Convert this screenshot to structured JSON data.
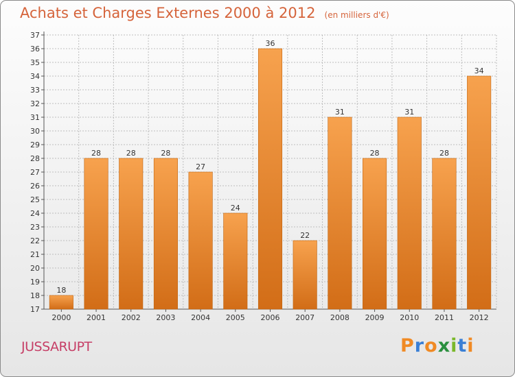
{
  "page": {
    "title": "Achats et Charges Externes 2000 à 2012",
    "subtitle": "(en milliers d'€)",
    "commune": "JUSSARUPT",
    "logo": {
      "text": "Proxiti",
      "letter_colors": [
        "#f08a24",
        "#3a7fd5",
        "#f08a24",
        "#2a8f3e",
        "#7ab82a",
        "#3a7fd5",
        "#f08a24"
      ]
    }
  },
  "chart_data": {
    "type": "bar",
    "title": "Achats et Charges Externes 2000 à 2012",
    "subtitle": "(en milliers d'€)",
    "categories": [
      "2000",
      "2001",
      "2002",
      "2003",
      "2004",
      "2005",
      "2006",
      "2007",
      "2008",
      "2009",
      "2010",
      "2011",
      "2012"
    ],
    "values": [
      18,
      28,
      28,
      28,
      27,
      24,
      36,
      22,
      31,
      28,
      31,
      28,
      34
    ],
    "ylim": [
      17,
      37
    ],
    "yticks": [
      17,
      18,
      19,
      20,
      21,
      22,
      23,
      24,
      25,
      26,
      27,
      28,
      29,
      30,
      31,
      32,
      33,
      34,
      35,
      36,
      37
    ],
    "grid": true,
    "legend": "none",
    "colors": {
      "bar_top": "#f7a24e",
      "bar_bottom": "#d26d17",
      "bar_edge": "#c0640f",
      "grid": "#bdbdbd",
      "axis": "#555555"
    }
  }
}
